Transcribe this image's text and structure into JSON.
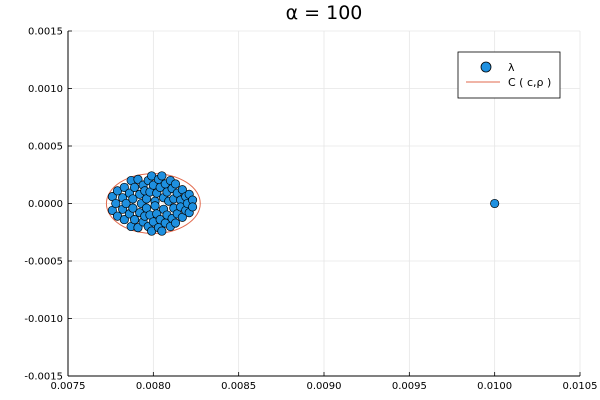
{
  "chart_data": {
    "type": "scatter",
    "title": "α =  100",
    "xlabel": "",
    "ylabel": "",
    "xlim": [
      0.0075,
      0.0105
    ],
    "ylim": [
      -0.0015,
      0.0015
    ],
    "xticks": [
      0.0075,
      0.008,
      0.0085,
      0.009,
      0.0095,
      0.01,
      0.0105
    ],
    "yticks": [
      -0.0015,
      -0.001,
      -0.0005,
      0.0,
      0.0005,
      0.001,
      0.0015
    ],
    "xtick_labels": [
      "0.0075",
      "0.0080",
      "0.0085",
      "0.0090",
      "0.0095",
      "0.0100",
      "0.0105"
    ],
    "ytick_labels": [
      "-0.0015",
      "-0.0010",
      "-0.0005",
      "0.0000",
      "0.0005",
      "0.0010",
      "0.0015"
    ],
    "grid": true,
    "legend_position": "top-right",
    "series": [
      {
        "name": "λ",
        "kind": "scatter",
        "color": "#1E90E0",
        "points": [
          [
            0.00776,
            6e-05
          ],
          [
            0.00776,
            -6e-05
          ],
          [
            0.00778,
            0.0
          ],
          [
            0.00779,
            0.00011
          ],
          [
            0.00779,
            -0.00011
          ],
          [
            0.00782,
            5e-05
          ],
          [
            0.00782,
            -5e-05
          ],
          [
            0.00783,
            0.00014
          ],
          [
            0.00783,
            -0.00014
          ],
          [
            0.00784,
            0.0
          ],
          [
            0.00786,
            9e-05
          ],
          [
            0.00786,
            -9e-05
          ],
          [
            0.00787,
            0.0002
          ],
          [
            0.00787,
            -0.0002
          ],
          [
            0.00788,
            4e-05
          ],
          [
            0.00788,
            -4e-05
          ],
          [
            0.00789,
            0.00014
          ],
          [
            0.00789,
            -0.00014
          ],
          [
            0.00791,
            0.00021
          ],
          [
            0.00791,
            -0.00021
          ],
          [
            0.00792,
            8e-05
          ],
          [
            0.00792,
            -8e-05
          ],
          [
            0.00793,
            0.0
          ],
          [
            0.00794,
            0.00016
          ],
          [
            0.00794,
            -0.00016
          ],
          [
            0.00795,
            0.00011
          ],
          [
            0.00795,
            -0.00011
          ],
          [
            0.00796,
            4e-05
          ],
          [
            0.00796,
            -4e-05
          ],
          [
            0.00797,
            0.0002
          ],
          [
            0.00797,
            -0.0002
          ],
          [
            0.00798,
            0.0001
          ],
          [
            0.00798,
            -0.0001
          ],
          [
            0.00799,
            0.00024
          ],
          [
            0.00799,
            -0.00024
          ],
          [
            0.008,
            0.00016
          ],
          [
            0.008,
            -0.00016
          ],
          [
            0.00801,
            2e-05
          ],
          [
            0.00801,
            -2e-05
          ],
          [
            0.00802,
            9e-05
          ],
          [
            0.00802,
            -9e-05
          ],
          [
            0.00803,
            0.00021
          ],
          [
            0.00803,
            -0.00021
          ],
          [
            0.00804,
            0.00014
          ],
          [
            0.00804,
            -0.00014
          ],
          [
            0.00805,
            0.00024
          ],
          [
            0.00805,
            -0.00024
          ],
          [
            0.00806,
            5e-05
          ],
          [
            0.00806,
            -5e-05
          ],
          [
            0.00807,
            0.00017
          ],
          [
            0.00807,
            -0.00017
          ],
          [
            0.00808,
            0.0001
          ],
          [
            0.00808,
            -0.0001
          ],
          [
            0.00809,
            2e-05
          ],
          [
            0.0081,
            0.0002
          ],
          [
            0.0081,
            -0.0002
          ],
          [
            0.00811,
            0.00013
          ],
          [
            0.00811,
            -0.00013
          ],
          [
            0.00812,
            4e-05
          ],
          [
            0.00812,
            -4e-05
          ],
          [
            0.00813,
            0.00017
          ],
          [
            0.00813,
            -0.00017
          ],
          [
            0.00814,
            9e-05
          ],
          [
            0.00814,
            -9e-05
          ],
          [
            0.00816,
            3e-05
          ],
          [
            0.00816,
            -3e-05
          ],
          [
            0.00817,
            0.00012
          ],
          [
            0.00817,
            -0.00012
          ],
          [
            0.00819,
            6e-05
          ],
          [
            0.00819,
            -6e-05
          ],
          [
            0.0082,
            0.0
          ],
          [
            0.00821,
            8e-05
          ],
          [
            0.00821,
            -8e-05
          ],
          [
            0.00823,
            3e-05
          ],
          [
            0.00823,
            -3e-05
          ],
          [
            0.01,
            0.0
          ]
        ]
      },
      {
        "name": "C ( c,ρ )",
        "kind": "circle",
        "color": "#E26A4D",
        "center": [
          0.008,
          0.0
        ],
        "radius_x": 0.000275,
        "radius_y": 0.00026
      }
    ]
  }
}
